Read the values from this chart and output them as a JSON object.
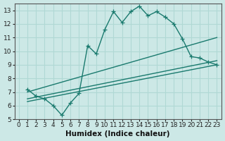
{
  "xlabel": "Humidex (Indice chaleur)",
  "bg_color": "#cce8e6",
  "grid_color": "#b0d8d4",
  "line_color": "#1a7a6e",
  "xlim": [
    -0.5,
    23.5
  ],
  "ylim": [
    5,
    13.5
  ],
  "xticks": [
    0,
    1,
    2,
    3,
    4,
    5,
    6,
    7,
    8,
    9,
    10,
    11,
    12,
    13,
    14,
    15,
    16,
    17,
    18,
    19,
    20,
    21,
    22,
    23
  ],
  "yticks": [
    5,
    6,
    7,
    8,
    9,
    10,
    11,
    12,
    13
  ],
  "line1_x": [
    1,
    2,
    3,
    4,
    5,
    6,
    7,
    8,
    9,
    10,
    11,
    12,
    13,
    14,
    15,
    16,
    17,
    18,
    19,
    20,
    21,
    22,
    23
  ],
  "line1_y": [
    7.2,
    6.7,
    6.5,
    6.0,
    5.3,
    6.2,
    6.9,
    10.4,
    9.8,
    11.6,
    12.9,
    12.1,
    12.9,
    13.3,
    12.6,
    12.9,
    12.5,
    12.0,
    10.9,
    9.6,
    9.5,
    9.2,
    9.0
  ],
  "line2_x": [
    1,
    23
  ],
  "line2_y": [
    7.0,
    11.0
  ],
  "line3_x": [
    1,
    23
  ],
  "line3_y": [
    6.5,
    9.3
  ],
  "line4_x": [
    1,
    23
  ],
  "line4_y": [
    6.3,
    9.0
  ],
  "marker_size": 4,
  "line_width": 1.0,
  "tick_fontsize": 6.5,
  "xlabel_fontsize": 7.5
}
